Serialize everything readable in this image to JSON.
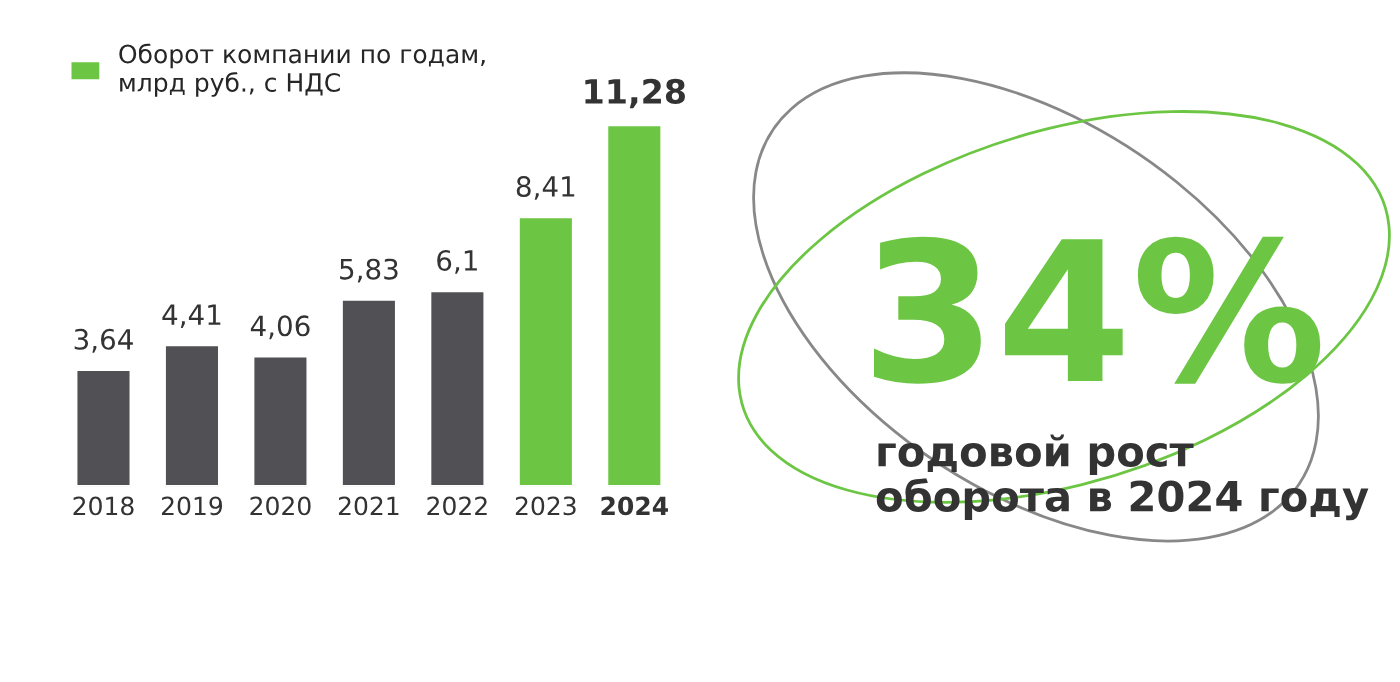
{
  "chart_data": {
    "type": "bar",
    "categories": [
      "2018",
      "2019",
      "2020",
      "2021",
      "2022",
      "2023",
      "2024"
    ],
    "series": [
      {
        "name": "Оборот компании по годам,\nмлрд руб., с НДС",
        "color": "#6cc644",
        "colors": [
          "#505055",
          "#505055",
          "#505055",
          "#505055",
          "#505055",
          "#6cc644",
          "#6cc644"
        ],
        "values": [
          3.64,
          4.41,
          4.06,
          5.83,
          6.1,
          8.41,
          11.28
        ],
        "value_labels": [
          "3,64",
          "4,41",
          "4,06",
          "5,83",
          "6,1",
          "8,41",
          "11,28"
        ]
      }
    ],
    "legend": "top left",
    "tick_labels": "x",
    "grid": false,
    "annotations": [
      "34%",
      "годовой рост\nоборота в 2024 году"
    ]
  }
}
